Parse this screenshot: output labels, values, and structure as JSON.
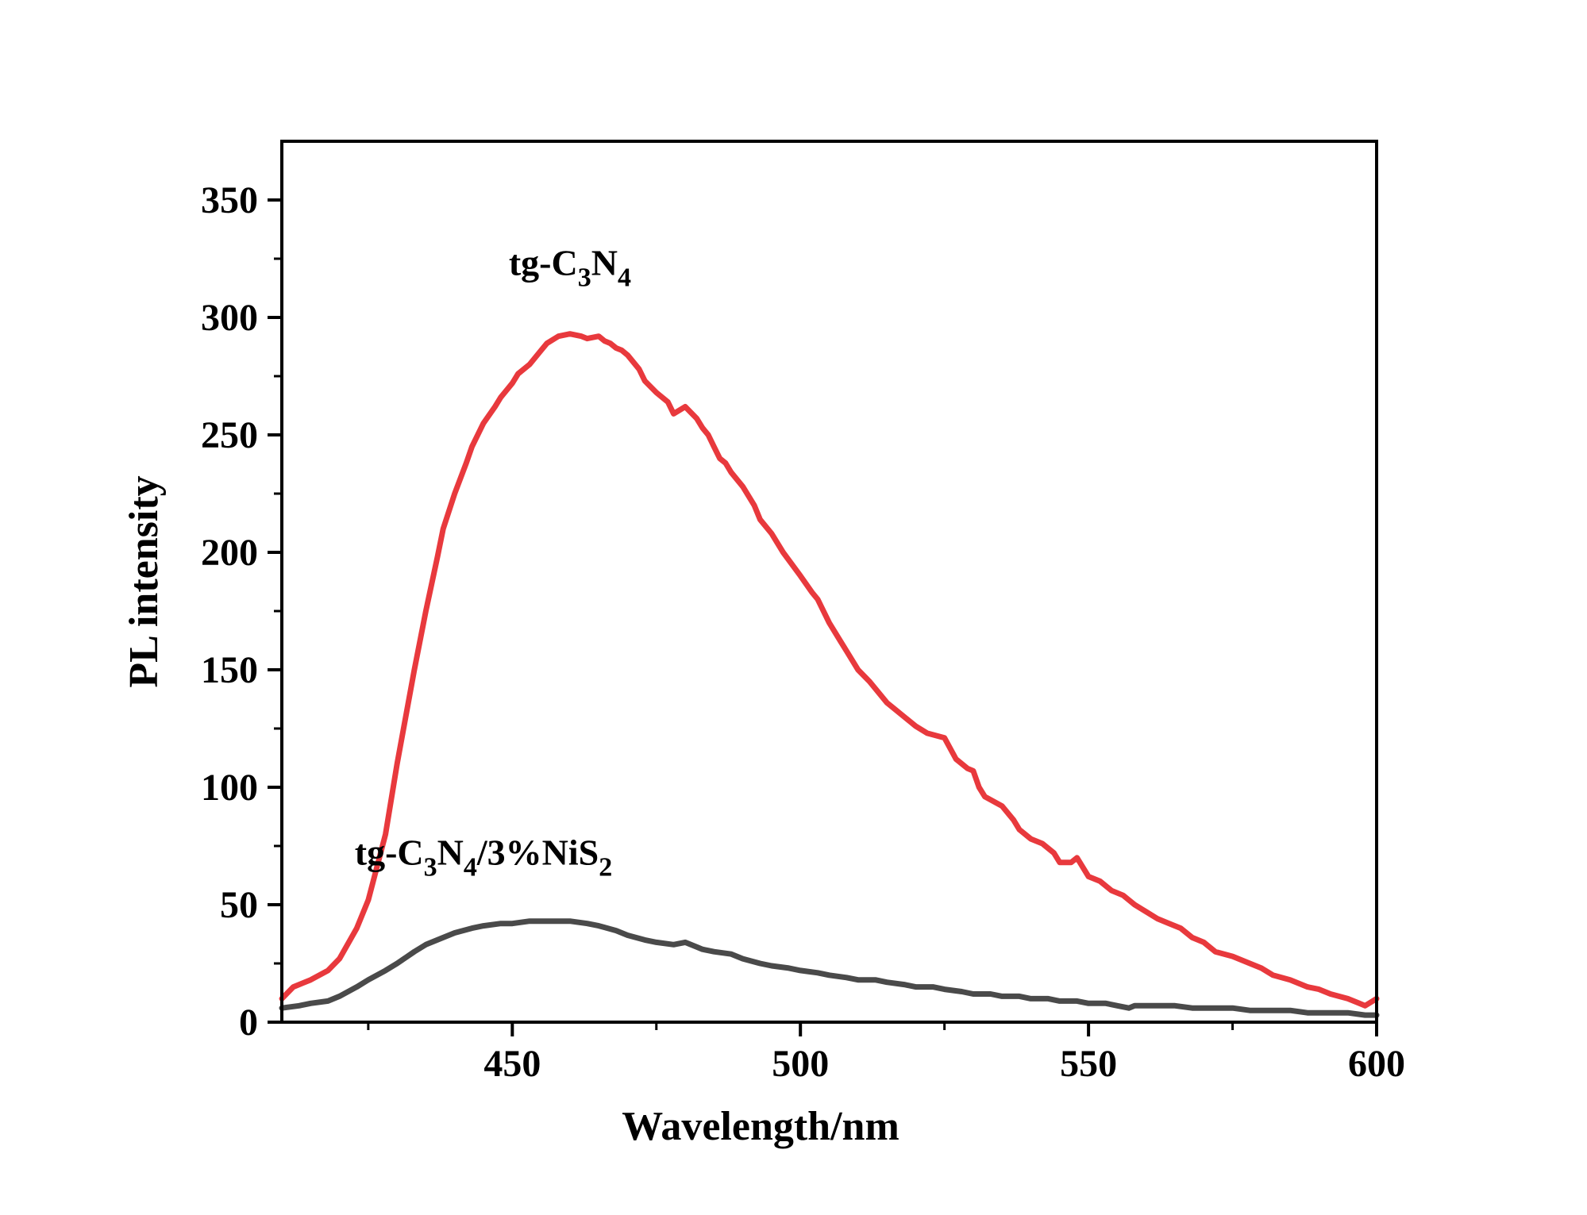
{
  "chart_data": {
    "type": "line",
    "title": "",
    "xlabel": "Wavelength/nm",
    "ylabel": "PL intensity",
    "xlim": [
      410,
      600
    ],
    "ylim": [
      0,
      375
    ],
    "xticks": [
      450,
      500,
      550,
      600
    ],
    "xtick_labels": [
      "450",
      "500",
      "550",
      "600"
    ],
    "xminor": [
      425,
      475,
      525,
      575
    ],
    "yticks": [
      0,
      50,
      100,
      150,
      200,
      250,
      300,
      350
    ],
    "ytick_labels": [
      "0",
      "50",
      "100",
      "150",
      "200",
      "250",
      "300",
      "350"
    ],
    "yminor": [
      25,
      75,
      125,
      175,
      225,
      275,
      325
    ],
    "grid": false,
    "legend": "none",
    "series": [
      {
        "name": "tg-C3N4",
        "color": "#e8393d",
        "x": [
          410,
          412,
          415,
          418,
          420,
          423,
          425,
          428,
          430,
          433,
          435,
          437,
          438,
          440,
          442,
          443,
          445,
          447,
          448,
          450,
          451,
          453,
          455,
          456,
          458,
          460,
          462,
          463,
          465,
          466,
          467,
          468,
          469,
          470,
          472,
          473,
          475,
          477,
          478,
          480,
          482,
          483,
          484,
          485,
          486,
          487,
          488,
          490,
          492,
          493,
          495,
          497,
          500,
          502,
          503,
          505,
          507,
          508,
          510,
          512,
          515,
          518,
          520,
          522,
          525,
          527,
          529,
          530,
          531,
          532,
          535,
          537,
          538,
          540,
          542,
          544,
          545,
          547,
          548,
          550,
          552,
          554,
          556,
          557,
          558,
          560,
          562,
          564,
          566,
          568,
          570,
          572,
          575,
          578,
          580,
          582,
          585,
          588,
          590,
          592,
          595,
          597,
          598,
          600
        ],
        "y": [
          10,
          15,
          18,
          22,
          27,
          40,
          52,
          80,
          110,
          150,
          175,
          198,
          210,
          225,
          238,
          245,
          255,
          262,
          266,
          272,
          276,
          280,
          286,
          289,
          292,
          293,
          292,
          291,
          292,
          290,
          289,
          287,
          286,
          284,
          278,
          273,
          268,
          264,
          259,
          262,
          257,
          253,
          250,
          245,
          240,
          238,
          234,
          228,
          220,
          214,
          208,
          200,
          190,
          183,
          180,
          170,
          162,
          158,
          150,
          145,
          136,
          130,
          126,
          123,
          121,
          112,
          108,
          107,
          100,
          96,
          92,
          86,
          82,
          78,
          76,
          72,
          68,
          68,
          70,
          62,
          60,
          56,
          54,
          52,
          50,
          47,
          44,
          42,
          40,
          36,
          34,
          30,
          28,
          25,
          23,
          20,
          18,
          15,
          14,
          12,
          10,
          8,
          7,
          10
        ]
      },
      {
        "name": "tg-C3N4/3%NiS2",
        "color": "#4a4a4a",
        "x": [
          410,
          413,
          415,
          418,
          420,
          423,
          425,
          428,
          430,
          433,
          435,
          438,
          440,
          443,
          445,
          448,
          450,
          453,
          455,
          458,
          460,
          463,
          465,
          468,
          470,
          473,
          475,
          478,
          480,
          482,
          483,
          485,
          488,
          490,
          493,
          495,
          498,
          500,
          503,
          505,
          508,
          510,
          513,
          515,
          518,
          520,
          523,
          525,
          528,
          530,
          533,
          535,
          538,
          540,
          543,
          545,
          548,
          550,
          553,
          555,
          557,
          558,
          560,
          563,
          565,
          568,
          570,
          573,
          575,
          578,
          580,
          583,
          585,
          588,
          590,
          593,
          595,
          598,
          600
        ],
        "y": [
          6,
          7,
          8,
          9,
          11,
          15,
          18,
          22,
          25,
          30,
          33,
          36,
          38,
          40,
          41,
          42,
          42,
          43,
          43,
          43,
          43,
          42,
          41,
          39,
          37,
          35,
          34,
          33,
          34,
          32,
          31,
          30,
          29,
          27,
          25,
          24,
          23,
          22,
          21,
          20,
          19,
          18,
          18,
          17,
          16,
          15,
          15,
          14,
          13,
          12,
          12,
          11,
          11,
          10,
          10,
          9,
          9,
          8,
          8,
          7,
          6,
          7,
          7,
          7,
          7,
          6,
          6,
          6,
          6,
          5,
          5,
          5,
          5,
          4,
          4,
          4,
          4,
          3,
          3
        ]
      }
    ],
    "annotations": [
      {
        "series": "tg-C3N4",
        "parts": [
          "tg-C",
          "3",
          "N",
          "4"
        ],
        "anchor_x": 460,
        "anchor_y": 318
      },
      {
        "series": "tg-C3N4/3%NiS2",
        "parts": [
          "tg-C",
          "3",
          "N",
          "4",
          "/3%NiS",
          "2"
        ],
        "anchor_x": 445,
        "anchor_y": 67
      }
    ]
  }
}
